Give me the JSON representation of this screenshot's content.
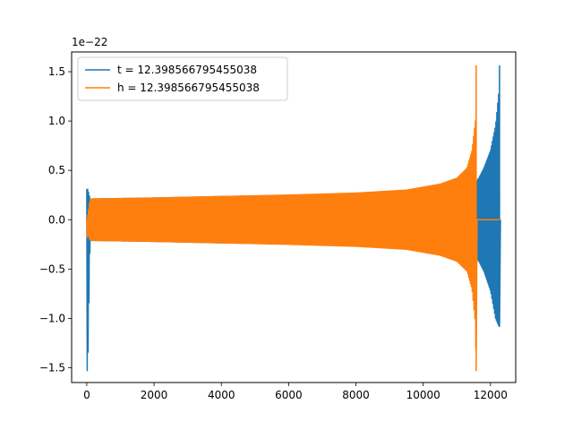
{
  "chart_data": {
    "type": "line",
    "title": "",
    "xlabel": "",
    "ylabel": "",
    "y_offset_label": "1e−22",
    "xlim": [
      -450,
      12750
    ],
    "ylim": [
      -1.65,
      1.7
    ],
    "x_ticks": [
      0,
      2000,
      4000,
      6000,
      8000,
      10000,
      12000
    ],
    "x_tick_labels": [
      "0",
      "2000",
      "4000",
      "6000",
      "8000",
      "10000",
      "12000"
    ],
    "y_ticks": [
      -1.5,
      -1.0,
      -0.5,
      0.0,
      0.5,
      1.0,
      1.5
    ],
    "y_tick_labels": [
      "−1.5",
      "−1.0",
      "−0.5",
      "0.0",
      "0.5",
      "1.0",
      "1.5"
    ],
    "grid": false,
    "legend_position": "top-left",
    "series": [
      {
        "name": "t = 12.398566795455038",
        "color": "#1f77b4",
        "envelope": {
          "x": [
            0,
            30,
            100,
            2000,
            4000,
            6000,
            8000,
            10000,
            11000,
            11500,
            11650,
            11800,
            12000,
            12150,
            12250,
            12270
          ],
          "upper": [
            0.31,
            0.31,
            0.21,
            0.22,
            0.235,
            0.245,
            0.26,
            0.29,
            0.32,
            0.35,
            0.42,
            0.52,
            0.7,
            0.95,
            1.3,
            1.56
          ],
          "lower": [
            -1.53,
            -1.53,
            -0.21,
            -0.22,
            -0.235,
            -0.245,
            -0.26,
            -0.29,
            -0.32,
            -0.35,
            -0.42,
            -0.52,
            -0.72,
            -1.0,
            -1.08,
            -1.08
          ]
        },
        "flat_after": 12270
      },
      {
        "name": "h = 12.398566795455038",
        "color": "#ff7f0e",
        "envelope": {
          "x": [
            0,
            30,
            100,
            2000,
            4000,
            6000,
            8000,
            9500,
            10500,
            11000,
            11300,
            11450,
            11550,
            11575
          ],
          "upper": [
            0.0,
            0.05,
            0.21,
            0.22,
            0.235,
            0.25,
            0.27,
            0.3,
            0.36,
            0.42,
            0.52,
            0.7,
            1.0,
            1.56
          ],
          "lower": [
            -0.2,
            -0.15,
            -0.21,
            -0.22,
            -0.235,
            -0.25,
            -0.27,
            -0.3,
            -0.36,
            -0.42,
            -0.52,
            -0.7,
            -1.05,
            -1.53
          ]
        },
        "flat_after": 11575,
        "flat_until": 12270
      }
    ]
  }
}
